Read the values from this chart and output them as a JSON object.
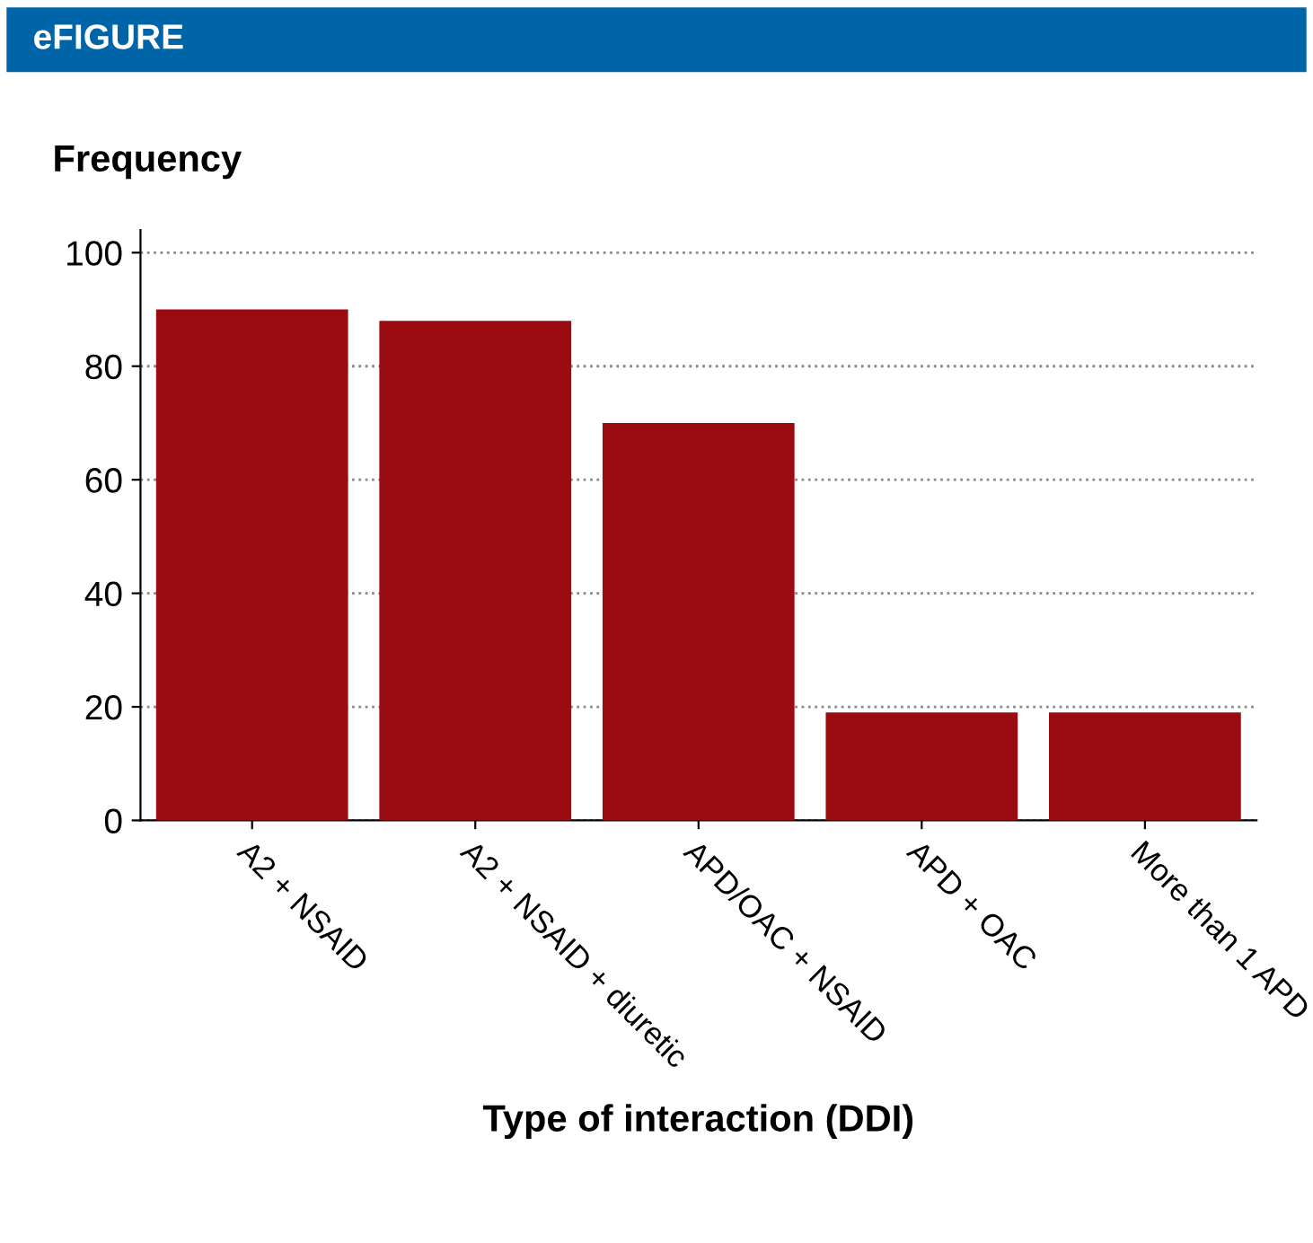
{
  "chart_data": {
    "type": "bar",
    "title": "eFIGURE",
    "ylabel": "Frequency",
    "xlabel": "Type of interaction (DDI)",
    "categories": [
      "A2 + NSAID",
      "A2 + NSAID + diuretic",
      "APD/OAC + NSAID",
      "APD + OAC",
      "More than 1 APD"
    ],
    "values": [
      90,
      88,
      70,
      19,
      19
    ],
    "color": "#9b0b12",
    "ylim": [
      0,
      104
    ],
    "yticks": [
      0,
      20,
      40,
      60,
      80,
      100
    ],
    "grid": "y"
  }
}
